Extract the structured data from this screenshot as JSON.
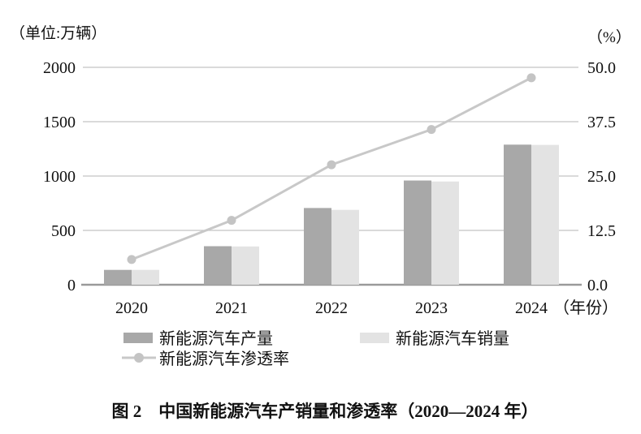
{
  "chart_data": {
    "type": "combo-bar-line",
    "title": "图 2　中国新能源汽车产销量和渗透率（2020—2024 年）",
    "categories": [
      "2020",
      "2021",
      "2022",
      "2023",
      "2024"
    ],
    "x_axis": {
      "suffix_label": "（年份）"
    },
    "left_axis": {
      "unit": "（单位:万辆）",
      "ticks": [
        "0",
        "500",
        "1000",
        "1500",
        "2000"
      ],
      "min": 0,
      "max": 2000,
      "step": 500
    },
    "right_axis": {
      "unit": "（%）",
      "ticks": [
        "0.0",
        "12.5",
        "25.0",
        "37.5",
        "50.0"
      ],
      "min": 0,
      "max": 50,
      "step": 12.5
    },
    "series": [
      {
        "name": "新能源汽车产量",
        "type": "bar",
        "axis": "left",
        "color": "#a8a8a8",
        "values": [
          136.6,
          354.5,
          705.8,
          958.7,
          1288.8
        ]
      },
      {
        "name": "新能源汽车销量",
        "type": "bar",
        "axis": "left",
        "color": "#e3e3e3",
        "values": [
          136.7,
          352.1,
          688.7,
          949.5,
          1286.6
        ]
      },
      {
        "name": "新能源汽车渗透率",
        "type": "line",
        "axis": "right",
        "color": "#c8c8c8",
        "marker_color": "#c4c4c4",
        "values": [
          5.8,
          14.8,
          27.6,
          35.7,
          47.6
        ]
      }
    ],
    "grid": true,
    "legend_position": "bottom",
    "colors": {
      "gridline": "#c4c4c4",
      "baseline": "#9a9a9a",
      "text": "#111111",
      "background": "#ffffff"
    }
  }
}
